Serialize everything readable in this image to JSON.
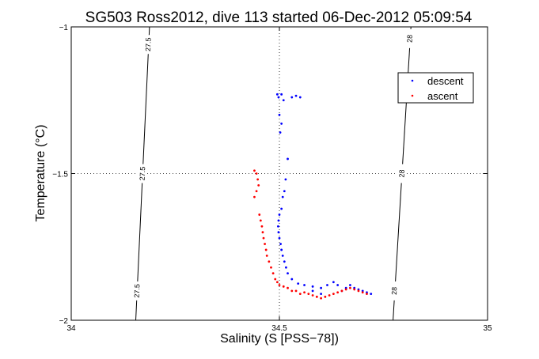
{
  "chart_data": {
    "type": "scatter",
    "title": "SG503 Ross2012, dive 113 started 06-Dec-2012 05:09:54",
    "xlabel": "Salinity (S [PSS−78])",
    "ylabel": "Temperature (°C)",
    "xlim": [
      34,
      35
    ],
    "ylim": [
      -2,
      -1
    ],
    "x_ticks": [
      "34",
      "34.5",
      "35"
    ],
    "y_ticks": [
      "−1",
      "−1.5",
      "−2"
    ],
    "x_tick_values": [
      34,
      34.5,
      35
    ],
    "y_tick_values": [
      -1,
      -1.5,
      -2
    ],
    "grid": true,
    "legend_position": "top-right",
    "isopycnals": [
      {
        "label": "27.5",
        "points": [
          [
            34.188,
            -1.0
          ],
          [
            34.155,
            -2.0
          ]
        ]
      },
      {
        "label": "28",
        "points": [
          [
            34.816,
            -1.0
          ],
          [
            34.773,
            -2.0
          ]
        ]
      }
    ],
    "isopycnal_labels": [
      {
        "text": "27.5",
        "x": 34.185,
        "y": -1.06
      },
      {
        "text": "27.5",
        "x": 34.171,
        "y": -1.5
      },
      {
        "text": "27.5",
        "x": 34.158,
        "y": -1.9
      },
      {
        "text": "28",
        "x": 34.813,
        "y": -1.04
      },
      {
        "text": "28",
        "x": 34.794,
        "y": -1.5
      },
      {
        "text": "28",
        "x": 34.776,
        "y": -1.9
      }
    ],
    "series": [
      {
        "name": "descent",
        "color": "#0000ff",
        "points": [
          [
            34.495,
            -1.23
          ],
          [
            34.498,
            -1.24
          ],
          [
            34.505,
            -1.23
          ],
          [
            34.51,
            -1.25
          ],
          [
            34.53,
            -1.24
          ],
          [
            34.54,
            -1.235
          ],
          [
            34.55,
            -1.24
          ],
          [
            34.5,
            -1.3
          ],
          [
            34.505,
            -1.33
          ],
          [
            34.502,
            -1.36
          ],
          [
            34.52,
            -1.45
          ],
          [
            34.515,
            -1.52
          ],
          [
            34.512,
            -1.56
          ],
          [
            34.508,
            -1.58
          ],
          [
            34.505,
            -1.62
          ],
          [
            34.5,
            -1.64
          ],
          [
            34.498,
            -1.66
          ],
          [
            34.497,
            -1.68
          ],
          [
            34.498,
            -1.7
          ],
          [
            34.5,
            -1.72
          ],
          [
            34.503,
            -1.74
          ],
          [
            34.505,
            -1.76
          ],
          [
            34.508,
            -1.78
          ],
          [
            34.512,
            -1.8
          ],
          [
            34.516,
            -1.82
          ],
          [
            34.52,
            -1.84
          ],
          [
            34.53,
            -1.86
          ],
          [
            34.545,
            -1.875
          ],
          [
            34.56,
            -1.88
          ],
          [
            34.58,
            -1.885
          ],
          [
            34.6,
            -1.89
          ],
          [
            34.615,
            -1.88
          ],
          [
            34.63,
            -1.87
          ],
          [
            34.64,
            -1.88
          ],
          [
            34.65,
            -1.9
          ],
          [
            34.66,
            -1.89
          ],
          [
            34.67,
            -1.88
          ],
          [
            34.68,
            -1.89
          ],
          [
            34.69,
            -1.895
          ],
          [
            34.7,
            -1.9
          ],
          [
            34.71,
            -1.905
          ],
          [
            34.72,
            -1.91
          ],
          [
            34.6,
            -1.91
          ],
          [
            34.58,
            -1.9
          ]
        ]
      },
      {
        "name": "ascent",
        "color": "#ff0000",
        "points": [
          [
            34.44,
            -1.49
          ],
          [
            34.445,
            -1.5
          ],
          [
            34.448,
            -1.52
          ],
          [
            34.45,
            -1.54
          ],
          [
            34.445,
            -1.56
          ],
          [
            34.44,
            -1.58
          ],
          [
            34.452,
            -1.64
          ],
          [
            34.455,
            -1.66
          ],
          [
            34.458,
            -1.68
          ],
          [
            34.46,
            -1.7
          ],
          [
            34.462,
            -1.72
          ],
          [
            34.465,
            -1.74
          ],
          [
            34.468,
            -1.76
          ],
          [
            34.47,
            -1.78
          ],
          [
            34.475,
            -1.8
          ],
          [
            34.48,
            -1.82
          ],
          [
            34.485,
            -1.84
          ],
          [
            34.49,
            -1.86
          ],
          [
            34.495,
            -1.87
          ],
          [
            34.5,
            -1.88
          ],
          [
            34.51,
            -1.885
          ],
          [
            34.52,
            -1.89
          ],
          [
            34.53,
            -1.9
          ],
          [
            34.54,
            -1.9
          ],
          [
            34.55,
            -1.91
          ],
          [
            34.56,
            -1.905
          ],
          [
            34.57,
            -1.91
          ],
          [
            34.58,
            -1.915
          ],
          [
            34.59,
            -1.92
          ],
          [
            34.6,
            -1.925
          ],
          [
            34.61,
            -1.92
          ],
          [
            34.62,
            -1.915
          ],
          [
            34.63,
            -1.91
          ],
          [
            34.64,
            -1.905
          ],
          [
            34.65,
            -1.9
          ],
          [
            34.66,
            -1.895
          ],
          [
            34.67,
            -1.89
          ],
          [
            34.68,
            -1.895
          ],
          [
            34.69,
            -1.9
          ],
          [
            34.7,
            -1.905
          ],
          [
            34.71,
            -1.91
          ]
        ]
      }
    ]
  }
}
